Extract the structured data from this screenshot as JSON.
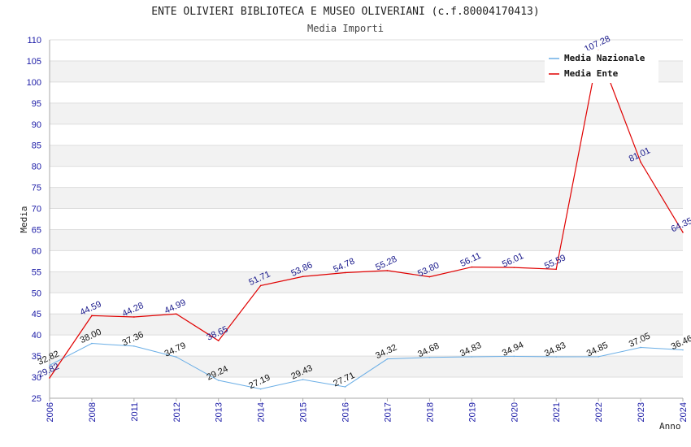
{
  "chart_data": {
    "type": "line",
    "title": "ENTE OLIVIERI BIBLIOTECA E MUSEO OLIVERIANI (c.f.80004170413)",
    "subtitle": "Media Importi",
    "xlabel": "Anno",
    "ylabel": "Media",
    "ylim": [
      25,
      110
    ],
    "yticks": [
      "25",
      "30",
      "35",
      "40",
      "45",
      "50",
      "55",
      "60",
      "65",
      "70",
      "75",
      "80",
      "85",
      "90",
      "95",
      "100",
      "105",
      "110"
    ],
    "categories": [
      "2006",
      "2008",
      "2011",
      "2012",
      "2013",
      "2014",
      "2015",
      "2016",
      "2017",
      "2018",
      "2019",
      "2020",
      "2021",
      "2022",
      "2023",
      "2024"
    ],
    "series": [
      {
        "name": "Media Nazionale",
        "color": "#6aaee6",
        "values": [
          32.82,
          38.0,
          37.36,
          34.79,
          29.24,
          27.19,
          29.43,
          27.71,
          34.32,
          34.68,
          34.83,
          34.94,
          34.83,
          34.85,
          37.05,
          36.46
        ],
        "labels": [
          "32.82",
          "38.00",
          "37.36",
          "34.79",
          "29.24",
          "27.19",
          "29.43",
          "27.71",
          "34.32",
          "34.68",
          "34.83",
          "34.94",
          "34.83",
          "34.85",
          "37.05",
          "36.46"
        ]
      },
      {
        "name": "Media Ente",
        "color": "#e00000",
        "values": [
          29.82,
          44.59,
          44.28,
          44.99,
          38.65,
          51.71,
          53.86,
          54.78,
          55.28,
          53.8,
          56.11,
          56.01,
          55.59,
          107.28,
          81.01,
          64.35
        ],
        "labels": [
          "29.82",
          "44.59",
          "44.28",
          "44.99",
          "38.65",
          "51.71",
          "53.86",
          "54.78",
          "55.28",
          "53.80",
          "56.11",
          "56.01",
          "55.59",
          "107.28",
          "81.01",
          "64.35"
        ]
      }
    ],
    "legend": {
      "placement": "top-right",
      "entries": [
        "Media Nazionale",
        "Media Ente"
      ]
    },
    "grid": true
  }
}
